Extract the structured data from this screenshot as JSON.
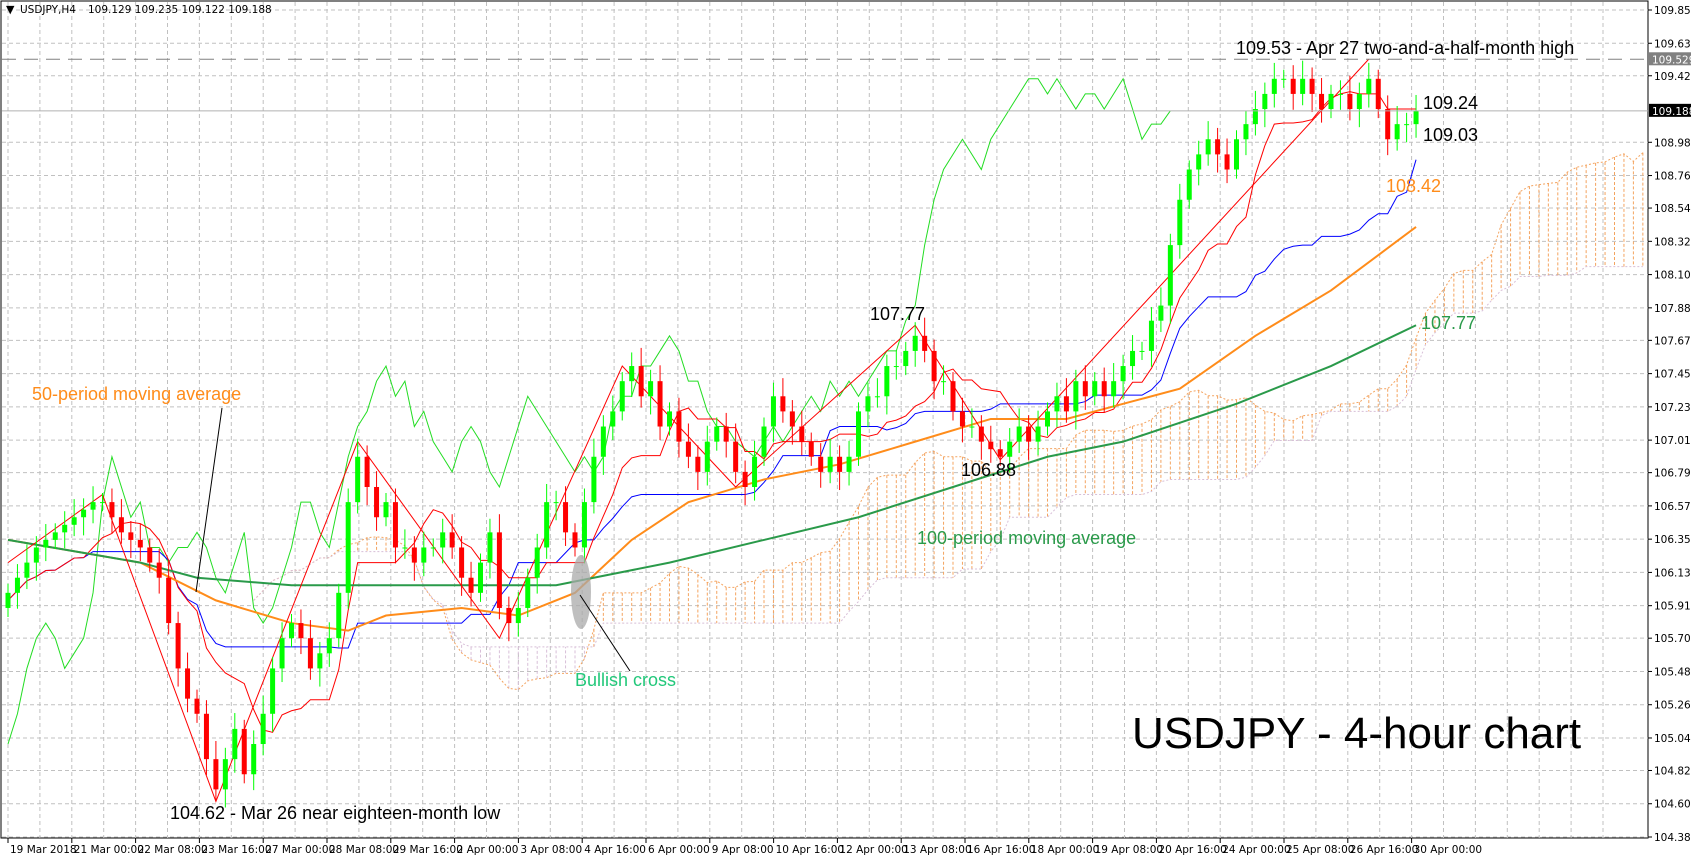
{
  "chart_data": {
    "type": "candlestick",
    "header": {
      "symbol": "USDJPY,H4",
      "ohlc": "109.129 109.235 109.122 109.188"
    },
    "title": "USDJPY - 4-hour chart",
    "ylim": [
      104.385,
      109.855
    ],
    "grid": true,
    "y_ticks": [
      "109.855",
      "109.635",
      "109.420",
      "108.980",
      "108.760",
      "108.545",
      "108.325",
      "108.105",
      "107.885",
      "107.670",
      "107.450",
      "107.230",
      "107.010",
      "106.795",
      "106.575",
      "106.355",
      "106.135",
      "105.915",
      "105.700",
      "105.480",
      "105.260",
      "105.040",
      "104.825",
      "104.605",
      "104.385"
    ],
    "x_ticks": [
      "19 Mar 2018",
      "21 Mar 00:00",
      "22 Mar 08:00",
      "23 Mar 16:00",
      "27 Mar 00:00",
      "28 Mar 08:00",
      "29 Mar 16:00",
      "2 Apr 00:00",
      "3 Apr 08:00",
      "4 Apr 16:00",
      "6 Apr 00:00",
      "9 Apr 08:00",
      "10 Apr 16:00",
      "12 Apr 00:00",
      "13 Apr 08:00",
      "16 Apr 16:00",
      "18 Apr 00:00",
      "19 Apr 08:00",
      "20 Apr 16:00",
      "24 Apr 00:00",
      "25 Apr 08:00",
      "26 Apr 16:00",
      "30 Apr 00:00"
    ],
    "first_open": 105.9,
    "closes": [
      106.0,
      106.1,
      106.2,
      106.3,
      106.35,
      106.4,
      106.45,
      106.5,
      106.55,
      106.6,
      106.6,
      106.5,
      106.4,
      106.35,
      106.3,
      106.2,
      106.1,
      105.8,
      105.5,
      105.3,
      105.2,
      104.9,
      104.7,
      104.9,
      105.1,
      104.8,
      105.0,
      105.2,
      105.5,
      105.7,
      105.8,
      105.7,
      105.5,
      105.6,
      105.7,
      106.0,
      106.6,
      106.9,
      106.7,
      106.5,
      106.6,
      106.3,
      106.3,
      106.2,
      106.3,
      106.3,
      106.4,
      106.3,
      106.1,
      106.0,
      106.2,
      106.4,
      105.9,
      105.8,
      105.9,
      106.1,
      106.3,
      106.6,
      106.6,
      106.4,
      106.3,
      106.6,
      106.9,
      107.1,
      107.2,
      107.4,
      107.5,
      107.3,
      107.4,
      107.1,
      107.2,
      107.0,
      106.9,
      106.8,
      107.0,
      107.1,
      107.0,
      106.8,
      106.7,
      106.9,
      107.1,
      107.3,
      107.2,
      107.1,
      107.0,
      106.9,
      106.8,
      106.9,
      106.8,
      106.9,
      107.2,
      107.3,
      107.3,
      107.5,
      107.5,
      107.6,
      107.7,
      107.6,
      107.4,
      107.4,
      107.2,
      107.1,
      107.1,
      107.0,
      106.95,
      106.9,
      107.0,
      107.1,
      107.0,
      107.1,
      107.2,
      107.3,
      107.2,
      107.4,
      107.3,
      107.4,
      107.3,
      107.4,
      107.5,
      107.6,
      107.6,
      107.8,
      107.9,
      108.3,
      108.6,
      108.8,
      108.9,
      109.0,
      108.9,
      108.8,
      109.0,
      109.1,
      109.2,
      109.3,
      109.4,
      109.4,
      109.3,
      109.4,
      109.3,
      109.2,
      109.3,
      109.3,
      109.2,
      109.3,
      109.4,
      109.2,
      109.0,
      109.1,
      109.1,
      109.188
    ],
    "series": [
      {
        "name": "50-period moving average",
        "color": "#ff8c1a",
        "points": [
          [
            0,
            106.35
          ],
          [
            14,
            106.2
          ],
          [
            22,
            105.95
          ],
          [
            30,
            105.8
          ],
          [
            36,
            105.75
          ],
          [
            40,
            105.85
          ],
          [
            48,
            105.9
          ],
          [
            54,
            105.85
          ],
          [
            60,
            106.0
          ],
          [
            66,
            106.35
          ],
          [
            72,
            106.6
          ],
          [
            80,
            106.75
          ],
          [
            88,
            106.85
          ],
          [
            96,
            107.0
          ],
          [
            104,
            107.15
          ],
          [
            112,
            107.15
          ],
          [
            118,
            107.25
          ],
          [
            124,
            107.35
          ],
          [
            132,
            107.7
          ],
          [
            140,
            108.0
          ],
          [
            149,
            108.42
          ]
        ]
      },
      {
        "name": "100-period moving average",
        "color": "#2a9a4a",
        "points": [
          [
            0,
            106.35
          ],
          [
            14,
            106.2
          ],
          [
            20,
            106.1
          ],
          [
            30,
            106.05
          ],
          [
            50,
            106.05
          ],
          [
            58,
            106.05
          ],
          [
            70,
            106.2
          ],
          [
            80,
            106.35
          ],
          [
            90,
            106.5
          ],
          [
            100,
            106.7
          ],
          [
            110,
            106.9
          ],
          [
            118,
            107.0
          ],
          [
            130,
            107.25
          ],
          [
            140,
            107.5
          ],
          [
            149,
            107.77
          ]
        ]
      }
    ],
    "zigzag": [
      [
        0,
        106.2
      ],
      [
        10,
        106.65
      ],
      [
        22,
        104.62
      ],
      [
        37,
        107.0
      ],
      [
        52,
        105.7
      ],
      [
        65,
        107.5
      ],
      [
        77,
        106.7
      ],
      [
        96,
        107.77
      ],
      [
        105,
        106.88
      ],
      [
        144,
        109.53
      ]
    ],
    "levels": {
      "high_dashed": "109.529",
      "current": "109.188"
    },
    "colors": {
      "up": "#00ff00",
      "down": "#ff0000",
      "tenkan": "#ff0000",
      "kijun": "#0000ff",
      "chikou": "#22dd22",
      "cloud_up": "#f4a460",
      "cloud_down": "#d8bfd8",
      "grid": "#c0c0c0"
    },
    "annotations": {
      "high": "109.53 - Apr 27  two-and-a-half-month high",
      "tenkan_value": "109.24",
      "kijun_value": "109.03",
      "ma50_value": "108.42",
      "ma100_value": "107.77",
      "peak": "107.77",
      "trough": "106.88",
      "ma50_label": "50-period moving average",
      "ma100_label": "100-period moving average",
      "bullish_cross": "Bullish cross",
      "low": "104.62 - Mar 26 near eighteen-month low"
    }
  }
}
